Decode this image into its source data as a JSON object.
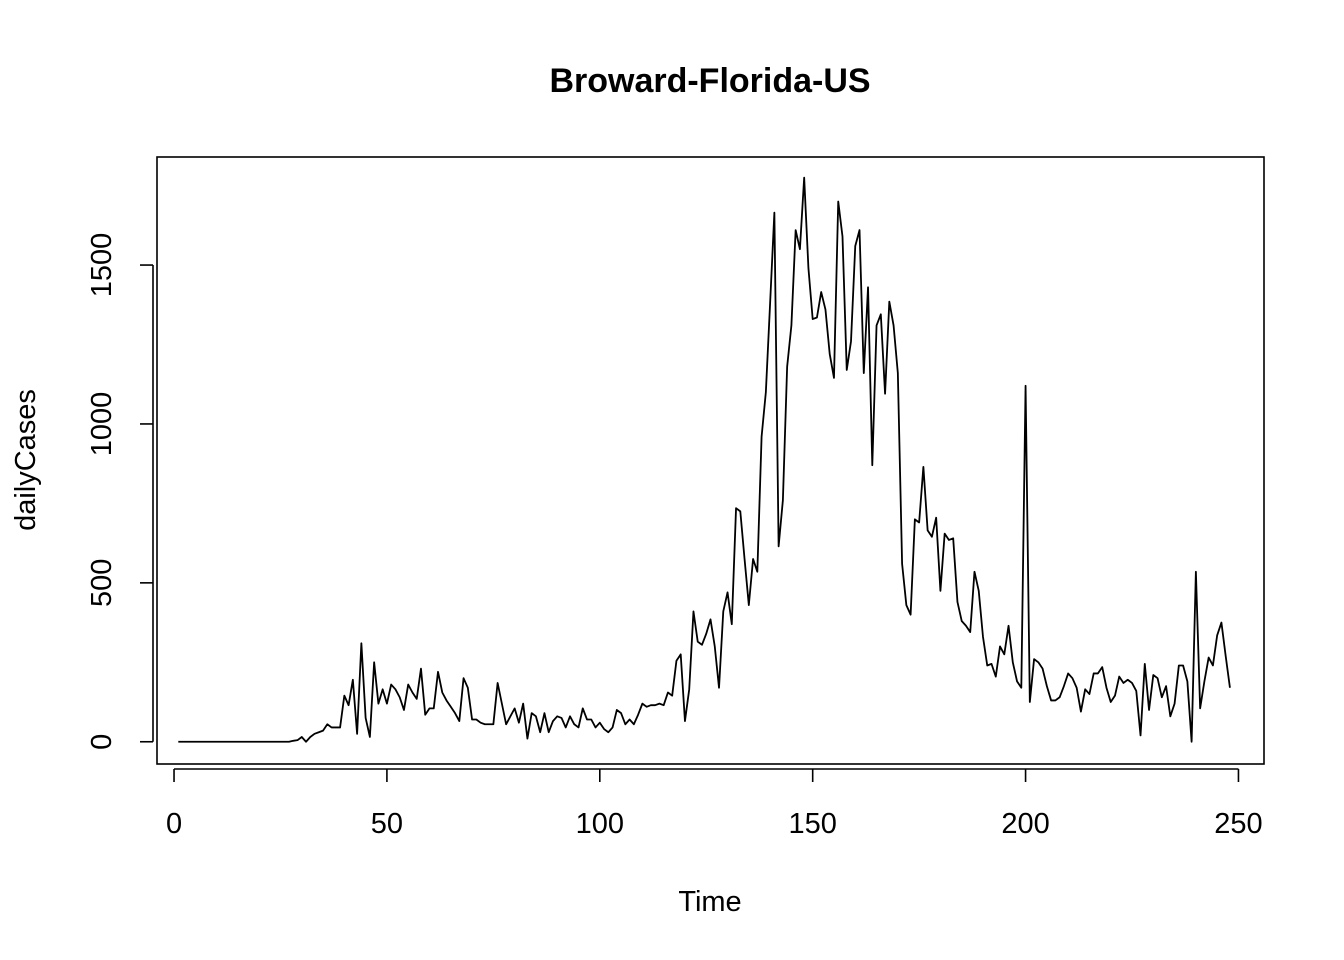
{
  "chart_data": {
    "type": "line",
    "title": "Broward-Florida-US",
    "xlabel": "Time",
    "ylabel": "dailyCases",
    "xlim": [
      -4,
      256
    ],
    "ylim": [
      -70,
      1840
    ],
    "xticks": [
      0,
      50,
      100,
      150,
      200,
      250
    ],
    "yticks": [
      0,
      500,
      1000,
      1500
    ],
    "grid": false,
    "legend": "none",
    "color": "#000000",
    "x_start": 1,
    "values": [
      0,
      0,
      0,
      0,
      0,
      0,
      0,
      0,
      0,
      0,
      0,
      0,
      0,
      0,
      0,
      0,
      0,
      0,
      0,
      0,
      0,
      0,
      0,
      0,
      0,
      0,
      0,
      3,
      5,
      15,
      0,
      15,
      25,
      30,
      35,
      55,
      45,
      45,
      45,
      145,
      115,
      195,
      25,
      310,
      75,
      15,
      250,
      120,
      165,
      120,
      180,
      165,
      140,
      100,
      180,
      155,
      135,
      230,
      85,
      105,
      105,
      220,
      155,
      130,
      110,
      90,
      65,
      200,
      170,
      70,
      70,
      60,
      55,
      55,
      55,
      185,
      120,
      55,
      80,
      105,
      60,
      120,
      10,
      90,
      80,
      30,
      90,
      30,
      65,
      80,
      75,
      45,
      80,
      55,
      45,
      105,
      70,
      70,
      45,
      60,
      40,
      30,
      45,
      100,
      90,
      55,
      70,
      55,
      85,
      120,
      110,
      115,
      115,
      120,
      115,
      155,
      145,
      255,
      275,
      65,
      165,
      410,
      315,
      305,
      340,
      385,
      300,
      170,
      410,
      470,
      370,
      735,
      725,
      575,
      430,
      575,
      535,
      960,
      1100,
      1380,
      1665,
      615,
      760,
      1180,
      1310,
      1610,
      1550,
      1775,
      1490,
      1330,
      1335,
      1415,
      1360,
      1220,
      1145,
      1700,
      1590,
      1170,
      1260,
      1560,
      1610,
      1160,
      1430,
      870,
      1310,
      1345,
      1095,
      1385,
      1310,
      1160,
      560,
      430,
      400,
      700,
      690,
      865,
      665,
      645,
      705,
      475,
      655,
      635,
      640,
      440,
      380,
      365,
      345,
      535,
      475,
      330,
      240,
      245,
      205,
      300,
      275,
      365,
      250,
      190,
      170,
      1120,
      125,
      260,
      250,
      230,
      175,
      130,
      130,
      140,
      175,
      215,
      200,
      170,
      95,
      165,
      150,
      215,
      215,
      235,
      170,
      125,
      145,
      205,
      185,
      195,
      185,
      160,
      20,
      245,
      100,
      210,
      200,
      140,
      175,
      80,
      120,
      240,
      240,
      190,
      0,
      535,
      105,
      190,
      265,
      240,
      335,
      375,
      270,
      170
    ]
  }
}
